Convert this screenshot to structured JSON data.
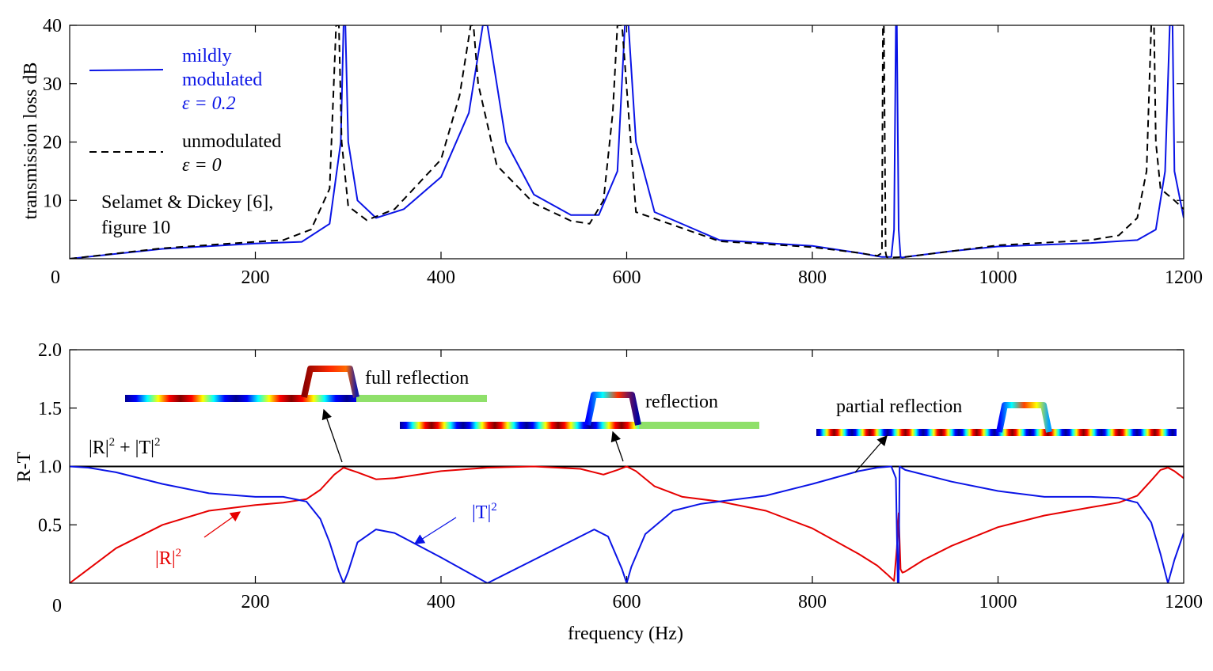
{
  "colors": {
    "modulated": "#0a14e6",
    "unmodulated": "#000000",
    "R": "#e60000",
    "T": "#0a14e6",
    "sum": "#000000"
  },
  "chart_data": [
    {
      "type": "line",
      "title": "",
      "xlabel": "",
      "ylabel": "transmission loss  dB",
      "xlim": [
        0,
        1200
      ],
      "ylim": [
        0,
        40
      ],
      "xticks": [
        "0",
        "200",
        "400",
        "600",
        "800",
        "1000",
        "1200"
      ],
      "yticks": [
        "10",
        "20",
        "30",
        "40"
      ],
      "legend": {
        "position": "top-left",
        "modulated_lines": [
          "mildly",
          "modulated",
          "ε = 0.2"
        ],
        "unmodulated_lines": [
          "unmodulated",
          "ε = 0"
        ]
      },
      "annotation_lines": [
        "Selamet & Dickey [6],",
        "figure 10"
      ],
      "series": [
        {
          "style": "solid",
          "color": "#0a14e6",
          "x": [
            0,
            100,
            200,
            250,
            280,
            292,
            295,
            297,
            300,
            310,
            330,
            360,
            400,
            430,
            445,
            450,
            455,
            470,
            500,
            540,
            570,
            590,
            598,
            602,
            610,
            630,
            700,
            800,
            850,
            875,
            885,
            888,
            890,
            891,
            893,
            895,
            897,
            900,
            950,
            1000,
            1100,
            1150,
            1170,
            1180,
            1185,
            1188,
            1190,
            1200
          ],
          "y": [
            0,
            1.7,
            2.6,
            2.9,
            6,
            20,
            40,
            40,
            20,
            10,
            7,
            8.5,
            14,
            25,
            40,
            40,
            35,
            20,
            11,
            7.5,
            7.5,
            15,
            40,
            40,
            20,
            8,
            3.2,
            2.2,
            1,
            0.3,
            0.3,
            5,
            40,
            40,
            5,
            0.3,
            0.2,
            0.3,
            1.3,
            2.1,
            2.7,
            3.2,
            5,
            15,
            40,
            40,
            15,
            7
          ]
        },
        {
          "style": "dashed",
          "color": "#000000",
          "x": [
            0,
            100,
            200,
            230,
            260,
            280,
            287,
            290,
            293,
            300,
            320,
            350,
            400,
            420,
            432,
            435,
            440,
            460,
            500,
            540,
            560,
            575,
            585,
            590,
            595,
            610,
            700,
            800,
            850,
            870,
            875,
            876,
            877,
            879,
            880,
            882,
            900,
            950,
            1000,
            1100,
            1130,
            1150,
            1160,
            1165,
            1168,
            1170,
            1175,
            1190,
            1200
          ],
          "y": [
            0,
            1.8,
            2.9,
            3.2,
            5,
            12,
            40,
            40,
            20,
            9,
            6.6,
            8.5,
            17,
            28,
            40,
            40,
            30,
            16,
            9.5,
            6.5,
            6,
            10,
            25,
            40,
            40,
            8,
            3,
            2,
            1,
            0.5,
            1,
            40,
            40,
            1,
            0.3,
            0.2,
            0.3,
            1.3,
            2.3,
            3.2,
            4,
            7,
            15,
            40,
            40,
            20,
            12,
            10,
            8.5
          ]
        }
      ]
    },
    {
      "type": "line",
      "title": "",
      "xlabel": "frequency (Hz)",
      "ylabel": "R-T",
      "xlim": [
        0,
        1200
      ],
      "ylim": [
        0,
        2
      ],
      "xticks": [
        "0",
        "200",
        "400",
        "600",
        "800",
        "1000",
        "1200"
      ],
      "yticks": [
        "0.5",
        "1.0",
        "1.5",
        "2.0"
      ],
      "labels": {
        "sum_base": "|R|",
        "sum_mid": " + |T|",
        "R_base": "|R|",
        "T_base": "|T|",
        "exp": "2"
      },
      "annotations": {
        "full": "full reflection",
        "refl": "reflection",
        "partial": "partial reflection"
      },
      "series": [
        {
          "name": "|R|² + |T|²",
          "color": "#000000",
          "x": [
            0,
            1200
          ],
          "y": [
            1,
            1
          ]
        },
        {
          "name": "|R|²",
          "color": "#e60000",
          "x": [
            0,
            20,
            50,
            100,
            150,
            200,
            230,
            255,
            270,
            285,
            295,
            310,
            330,
            350,
            400,
            450,
            500,
            550,
            575,
            590,
            600,
            610,
            630,
            660,
            700,
            750,
            800,
            850,
            870,
            880,
            888,
            891,
            893,
            895,
            897,
            900,
            920,
            950,
            1000,
            1050,
            1100,
            1130,
            1150,
            1165,
            1175,
            1183,
            1190,
            1200
          ],
          "y": [
            0,
            0.12,
            0.3,
            0.5,
            0.62,
            0.67,
            0.69,
            0.72,
            0.8,
            0.93,
            0.99,
            0.95,
            0.89,
            0.9,
            0.96,
            0.99,
            1,
            0.98,
            0.93,
            0.97,
            1,
            0.96,
            0.83,
            0.74,
            0.7,
            0.62,
            0.47,
            0.25,
            0.15,
            0.08,
            0.02,
            0.3,
            0.6,
            0.12,
            0.09,
            0.1,
            0.2,
            0.32,
            0.48,
            0.58,
            0.65,
            0.69,
            0.75,
            0.88,
            0.97,
            0.99,
            0.96,
            0.9
          ]
        },
        {
          "name": "|T|²",
          "color": "#0a14e6",
          "x": [
            0,
            20,
            50,
            100,
            150,
            200,
            230,
            255,
            270,
            280,
            290,
            295,
            300,
            310,
            330,
            350,
            400,
            450,
            500,
            550,
            565,
            580,
            595,
            600,
            605,
            620,
            650,
            680,
            700,
            750,
            800,
            850,
            870,
            885,
            890,
            892,
            893,
            894,
            896,
            900,
            950,
            1000,
            1050,
            1100,
            1130,
            1150,
            1165,
            1175,
            1183,
            1190,
            1200
          ],
          "y": [
            1,
            0.99,
            0.95,
            0.85,
            0.77,
            0.74,
            0.74,
            0.7,
            0.55,
            0.35,
            0.1,
            0,
            0.1,
            0.35,
            0.46,
            0.43,
            0.22,
            0,
            0.2,
            0.4,
            0.46,
            0.4,
            0.12,
            0,
            0.14,
            0.42,
            0.62,
            0.68,
            0.7,
            0.75,
            0.85,
            0.96,
            0.99,
            1,
            0.9,
            0,
            0,
            1,
            0.99,
            0.97,
            0.87,
            0.79,
            0.74,
            0.74,
            0.73,
            0.69,
            0.52,
            0.25,
            0,
            0.2,
            0.43
          ]
        }
      ]
    }
  ]
}
